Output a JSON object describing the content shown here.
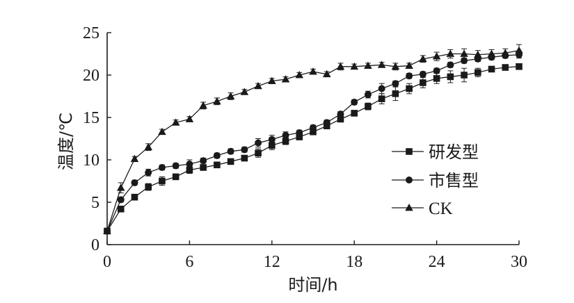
{
  "chart_data": {
    "type": "line",
    "title": "",
    "xlabel": "时间/h",
    "ylabel": "温度/℃",
    "xlim": [
      0,
      30
    ],
    "ylim": [
      0,
      25
    ],
    "x_ticks": [
      "0",
      "6",
      "12",
      "18",
      "24",
      "30"
    ],
    "y_ticks": [
      "0",
      "5",
      "10",
      "15",
      "20",
      "25"
    ],
    "grid": false,
    "legend_position": "right",
    "series": [
      {
        "name": "研发型",
        "marker": "square",
        "x": [
          0,
          1,
          2,
          3,
          4,
          5,
          6,
          7,
          8,
          9,
          10,
          11,
          12,
          13,
          14,
          15,
          16,
          17,
          18,
          19,
          20,
          21,
          22,
          23,
          24,
          25,
          26,
          27,
          28,
          29,
          30
        ],
        "y": [
          1.6,
          4.2,
          5.6,
          6.8,
          7.5,
          8.0,
          8.8,
          9.1,
          9.4,
          9.8,
          10.2,
          10.8,
          11.7,
          12.2,
          12.7,
          13.3,
          14.0,
          14.8,
          15.5,
          16.3,
          17.2,
          17.8,
          18.4,
          19.1,
          19.6,
          19.8,
          20.0,
          20.3,
          20.7,
          20.9,
          21.0
        ],
        "err": [
          0.3,
          0.3,
          0.3,
          0.4,
          0.5,
          0.3,
          0.4,
          0.3,
          0.3,
          0.3,
          0.3,
          0.5,
          0.5,
          0.4,
          0.3,
          0.3,
          0.3,
          0.3,
          0.3,
          0.4,
          0.6,
          0.8,
          0.6,
          0.6,
          0.6,
          0.7,
          0.8,
          0.5,
          0.3,
          0.3,
          0.3
        ]
      },
      {
        "name": "市售型",
        "marker": "circle",
        "x": [
          0,
          1,
          2,
          3,
          4,
          5,
          6,
          7,
          8,
          9,
          10,
          11,
          12,
          13,
          14,
          15,
          16,
          17,
          18,
          19,
          20,
          21,
          22,
          23,
          24,
          25,
          26,
          27,
          28,
          29,
          30
        ],
        "y": [
          1.6,
          5.3,
          7.3,
          8.5,
          9.1,
          9.3,
          9.5,
          9.9,
          10.5,
          11.0,
          11.2,
          12.0,
          12.4,
          12.9,
          13.2,
          13.8,
          14.4,
          15.4,
          16.8,
          17.7,
          18.4,
          19.0,
          19.9,
          20.1,
          20.5,
          21.2,
          21.7,
          21.9,
          22.1,
          22.3,
          22.4
        ],
        "err": [
          0.3,
          0.3,
          0.3,
          0.4,
          0.3,
          0.3,
          0.5,
          0.3,
          0.3,
          0.3,
          0.3,
          0.5,
          0.5,
          0.4,
          0.3,
          0.3,
          0.3,
          0.3,
          0.3,
          0.4,
          0.6,
          0.3,
          0.3,
          0.3,
          0.3,
          0.3,
          0.3,
          0.3,
          0.3,
          0.3,
          0.4
        ]
      },
      {
        "name": "CK",
        "marker": "triangle",
        "x": [
          0,
          1,
          2,
          3,
          4,
          5,
          6,
          7,
          8,
          9,
          10,
          11,
          12,
          13,
          14,
          15,
          16,
          17,
          18,
          19,
          20,
          21,
          22,
          23,
          24,
          25,
          26,
          27,
          28,
          29,
          30
        ],
        "y": [
          1.6,
          6.7,
          10.1,
          11.5,
          13.3,
          14.4,
          14.8,
          16.4,
          16.9,
          17.5,
          18.0,
          18.7,
          19.3,
          19.5,
          20.0,
          20.4,
          20.1,
          21.0,
          21.0,
          21.1,
          21.2,
          21.0,
          21.1,
          21.9,
          22.2,
          22.5,
          22.5,
          22.4,
          22.5,
          22.6,
          22.9
        ],
        "err": [
          0.3,
          0.6,
          0.3,
          0.4,
          0.3,
          0.3,
          0.3,
          0.4,
          0.4,
          0.4,
          0.3,
          0.3,
          0.3,
          0.3,
          0.3,
          0.3,
          0.3,
          0.4,
          0.3,
          0.3,
          0.3,
          0.4,
          0.3,
          0.4,
          0.5,
          0.5,
          0.6,
          0.5,
          0.5,
          0.5,
          0.7
        ]
      }
    ]
  }
}
